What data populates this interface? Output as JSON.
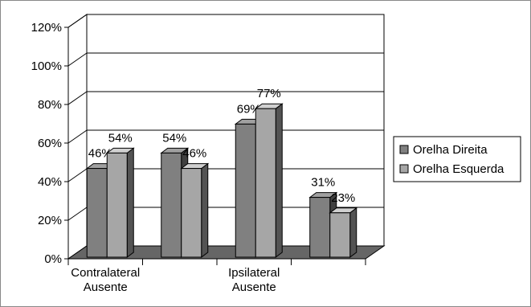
{
  "chart_data": {
    "type": "bar3d",
    "categories": [
      "Contralateral Ausente",
      null,
      "Ipsilateral Ausente",
      null
    ],
    "series": [
      {
        "name": "Orelha Direita",
        "color": "#808080",
        "values": [
          46,
          54,
          69,
          31
        ],
        "value_labels": [
          "46%",
          "54%",
          "69%",
          "31%"
        ]
      },
      {
        "name": "Orelha Esquerda",
        "color": "#a6a6a6",
        "values": [
          54,
          46,
          77,
          23
        ],
        "value_labels": [
          "54%",
          "46%",
          "77%",
          "23%"
        ]
      }
    ],
    "ylim": [
      0,
      120
    ],
    "yticks": [
      {
        "value": 0,
        "label": "0%"
      },
      {
        "value": 20,
        "label": "20%"
      },
      {
        "value": 40,
        "label": "40%"
      },
      {
        "value": 60,
        "label": "60%"
      },
      {
        "value": 80,
        "label": "80%"
      },
      {
        "value": 100,
        "label": "100%"
      },
      {
        "value": 120,
        "label": "120%"
      }
    ],
    "grid": true,
    "legend": "right"
  }
}
